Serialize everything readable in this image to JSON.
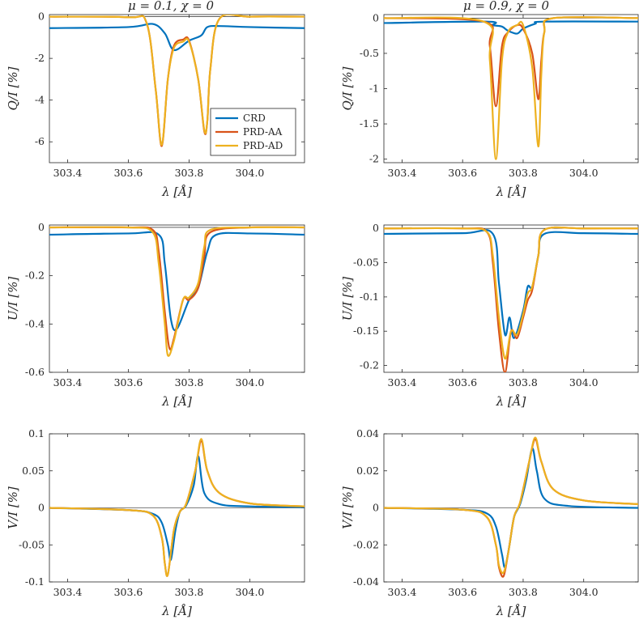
{
  "figure": {
    "colors": {
      "CRD": "#0072BD",
      "PRD-AA": "#D95319",
      "PRD-AD": "#EDB120",
      "observed": "#000000",
      "zero_line": "#000000"
    },
    "titles": [
      "μ = 0.1,  χ = 0",
      "μ = 0.9,  χ = 0"
    ],
    "legend": {
      "panel": 0,
      "location": "lower-right",
      "entries": [
        "CRD",
        "PRD-AA",
        "PRD-AD"
      ]
    }
  },
  "chart_data": [
    {
      "type": "line",
      "panel": "Q-mu0.1",
      "xlabel": "λ [Å]",
      "ylabel": "Q/I [%]",
      "xlim": [
        303.34,
        304.18
      ],
      "ylim": [
        -7.0,
        0.1
      ],
      "xticks": [
        303.4,
        303.6,
        303.8,
        304.0
      ],
      "xticklabels": [
        "303.4",
        "303.6",
        "303.8",
        "304.0"
      ],
      "yticks": [
        0,
        -2,
        -4,
        -6
      ],
      "yticklabels": [
        "0",
        "-2",
        "-4",
        "-6"
      ],
      "series": [
        {
          "name": "CRD",
          "x": [
            303.34,
            303.6,
            303.68,
            303.72,
            303.75,
            303.8,
            303.84,
            303.86,
            303.9,
            304.0,
            304.18
          ],
          "y": [
            -0.55,
            -0.5,
            -0.35,
            -0.8,
            -1.6,
            -1.15,
            -0.9,
            -0.5,
            -0.45,
            -0.5,
            -0.55
          ]
        },
        {
          "name": "PRD-AA",
          "x": [
            303.34,
            303.6,
            303.66,
            303.69,
            303.71,
            303.73,
            303.75,
            303.78,
            303.8,
            303.83,
            303.85,
            303.86,
            303.87,
            303.9,
            304.0,
            304.18
          ],
          "y": [
            0.0,
            -0.03,
            -0.3,
            -3.5,
            -6.2,
            -3.0,
            -1.4,
            -1.1,
            -1.15,
            -3.0,
            -5.5,
            -5.0,
            -2.5,
            -0.1,
            0.0,
            0.0
          ]
        },
        {
          "name": "PRD-AD",
          "x": [
            303.34,
            303.6,
            303.66,
            303.69,
            303.71,
            303.73,
            303.75,
            303.78,
            303.8,
            303.83,
            303.85,
            303.86,
            303.87,
            303.9,
            304.0,
            304.18
          ],
          "y": [
            0.0,
            -0.03,
            -0.3,
            -3.5,
            -6.15,
            -3.0,
            -1.5,
            -1.2,
            -1.2,
            -3.0,
            -5.45,
            -5.0,
            -2.5,
            -0.1,
            0.0,
            0.0
          ]
        }
      ]
    },
    {
      "type": "line",
      "panel": "Q-mu0.9",
      "xlabel": "λ [Å]",
      "ylabel": "Q/I [%]",
      "xlim": [
        303.34,
        304.18
      ],
      "ylim": [
        -2.05,
        0.05
      ],
      "xticks": [
        303.4,
        303.6,
        303.8,
        304.0
      ],
      "xticklabels": [
        "303.4",
        "303.6",
        "303.8",
        "304.0"
      ],
      "yticks": [
        0,
        -0.5,
        -1,
        -1.5,
        -2
      ],
      "yticklabels": [
        "0",
        "-0.5",
        "-1",
        "-1.5",
        "-2"
      ],
      "series": [
        {
          "name": "CRD",
          "x": [
            303.34,
            303.68,
            303.7,
            303.73,
            303.75,
            303.78,
            303.8,
            303.84,
            303.87,
            304.18
          ],
          "y": [
            -0.07,
            -0.05,
            -0.1,
            -0.12,
            -0.18,
            -0.22,
            -0.15,
            -0.08,
            -0.05,
            -0.05
          ]
        },
        {
          "name": "PRD-AA",
          "x": [
            303.34,
            303.67,
            303.69,
            303.71,
            303.73,
            303.75,
            303.78,
            303.8,
            303.83,
            303.85,
            303.86,
            303.87,
            303.9,
            304.18
          ],
          "y": [
            0.0,
            -0.05,
            -0.4,
            -1.25,
            -0.4,
            -0.2,
            -0.1,
            -0.15,
            -0.5,
            -1.15,
            -0.6,
            -0.2,
            0.0,
            0.0
          ]
        },
        {
          "name": "PRD-AD",
          "x": [
            303.34,
            303.67,
            303.69,
            303.71,
            303.73,
            303.75,
            303.78,
            303.8,
            303.83,
            303.85,
            303.86,
            303.87,
            303.9,
            304.18
          ],
          "y": [
            0.0,
            -0.05,
            -0.6,
            -2.0,
            -0.6,
            -0.2,
            -0.1,
            -0.1,
            -0.7,
            -1.82,
            -0.8,
            -0.2,
            0.0,
            0.0
          ]
        }
      ]
    },
    {
      "type": "line",
      "panel": "U-mu0.1",
      "xlabel": "λ [Å]",
      "ylabel": "U/I [%]",
      "xlim": [
        303.34,
        304.18
      ],
      "ylim": [
        -0.6,
        0.01
      ],
      "xticks": [
        303.4,
        303.6,
        303.8,
        304.0
      ],
      "xticklabels": [
        "303.4",
        "303.6",
        "303.8",
        "304.0"
      ],
      "yticks": [
        0,
        -0.2,
        -0.4,
        -0.6
      ],
      "yticklabels": [
        "0",
        "-0.2",
        "-0.4",
        "-0.6"
      ],
      "series": [
        {
          "name": "CRD",
          "x": [
            303.34,
            303.6,
            303.7,
            303.72,
            303.74,
            303.76,
            303.8,
            303.83,
            303.86,
            303.89,
            304.0,
            304.18
          ],
          "y": [
            -0.03,
            -0.025,
            -0.03,
            -0.15,
            -0.38,
            -0.42,
            -0.3,
            -0.25,
            -0.1,
            -0.03,
            -0.025,
            -0.03
          ]
        },
        {
          "name": "PRD-AA",
          "x": [
            303.34,
            303.6,
            303.68,
            303.7,
            303.72,
            303.735,
            303.75,
            303.78,
            303.8,
            303.83,
            303.85,
            303.87,
            304.0,
            304.18
          ],
          "y": [
            0.0,
            0.0,
            -0.01,
            -0.1,
            -0.35,
            -0.5,
            -0.46,
            -0.3,
            -0.3,
            -0.25,
            -0.12,
            -0.02,
            0.0,
            0.0
          ]
        },
        {
          "name": "PRD-AD",
          "x": [
            303.34,
            303.6,
            303.68,
            303.7,
            303.72,
            303.73,
            303.75,
            303.78,
            303.8,
            303.83,
            303.85,
            303.87,
            304.0,
            304.18
          ],
          "y": [
            0.0,
            0.0,
            -0.02,
            -0.15,
            -0.4,
            -0.53,
            -0.47,
            -0.3,
            -0.29,
            -0.23,
            -0.08,
            -0.01,
            0.0,
            0.0
          ]
        }
      ]
    },
    {
      "type": "line",
      "panel": "U-mu0.9",
      "xlabel": "λ [Å]",
      "ylabel": "U/I [%]",
      "xlim": [
        303.34,
        304.18
      ],
      "ylim": [
        -0.21,
        0.005
      ],
      "xticks": [
        303.4,
        303.6,
        303.8,
        304.0
      ],
      "xticklabels": [
        "303.4",
        "303.6",
        "303.8",
        "304.0"
      ],
      "yticks": [
        0,
        -0.05,
        -0.1,
        -0.15,
        -0.2
      ],
      "yticklabels": [
        "0",
        "-0.05",
        "-0.1",
        "-0.15",
        "-0.2"
      ],
      "series": [
        {
          "name": "CRD",
          "x": [
            303.34,
            303.6,
            303.7,
            303.72,
            303.74,
            303.755,
            303.77,
            303.8,
            303.815,
            303.83,
            303.85,
            303.87,
            304.0,
            304.18
          ],
          "y": [
            -0.008,
            -0.007,
            -0.008,
            -0.08,
            -0.155,
            -0.13,
            -0.16,
            -0.12,
            -0.085,
            -0.085,
            -0.04,
            -0.008,
            -0.007,
            -0.008
          ]
        },
        {
          "name": "PRD-AA",
          "x": [
            303.34,
            303.6,
            303.68,
            303.7,
            303.72,
            303.74,
            303.76,
            303.78,
            303.8,
            303.815,
            303.83,
            303.85,
            303.87,
            304.0,
            304.18
          ],
          "y": [
            0.0,
            0.0,
            -0.005,
            -0.05,
            -0.15,
            -0.21,
            -0.15,
            -0.16,
            -0.13,
            -0.105,
            -0.09,
            -0.04,
            -0.002,
            0.0,
            0.0
          ]
        },
        {
          "name": "PRD-AD",
          "x": [
            303.34,
            303.6,
            303.68,
            303.7,
            303.72,
            303.74,
            303.76,
            303.78,
            303.8,
            303.815,
            303.83,
            303.85,
            303.87,
            304.0,
            304.18
          ],
          "y": [
            0.0,
            0.0,
            -0.005,
            -0.04,
            -0.13,
            -0.19,
            -0.15,
            -0.155,
            -0.125,
            -0.095,
            -0.085,
            -0.04,
            -0.002,
            0.0,
            0.0
          ]
        }
      ]
    },
    {
      "type": "line",
      "panel": "V-mu0.1",
      "xlabel": "λ [Å]",
      "ylabel": "V/I [%]",
      "xlim": [
        303.34,
        304.18
      ],
      "ylim": [
        -0.1,
        0.1
      ],
      "xticks": [
        303.4,
        303.6,
        303.8,
        304.0
      ],
      "xticklabels": [
        "303.4",
        "303.6",
        "303.8",
        "304.0"
      ],
      "yticks": [
        0.1,
        0.05,
        0,
        -0.05,
        -0.1
      ],
      "yticklabels": [
        "0.1",
        "0.05",
        "0",
        "-0.05",
        "-0.1"
      ],
      "series": [
        {
          "name": "CRD",
          "x": [
            303.34,
            303.6,
            303.68,
            303.71,
            303.73,
            303.74,
            303.755,
            303.77,
            303.79,
            303.815,
            303.83,
            303.85,
            303.9,
            304.0,
            304.18
          ],
          "y": [
            0.0,
            -0.003,
            -0.008,
            -0.02,
            -0.05,
            -0.07,
            -0.03,
            -0.005,
            0.003,
            0.03,
            0.07,
            0.02,
            0.005,
            0.002,
            0.001
          ]
        },
        {
          "name": "PRD-AA",
          "x": [
            303.34,
            303.6,
            303.68,
            303.71,
            303.72,
            303.73,
            303.75,
            303.77,
            303.79,
            303.82,
            303.84,
            303.86,
            303.9,
            304.0,
            304.18
          ],
          "y": [
            0.0,
            -0.003,
            -0.01,
            -0.04,
            -0.075,
            -0.09,
            -0.03,
            -0.005,
            0.005,
            0.05,
            0.09,
            0.05,
            0.02,
            0.006,
            0.002
          ]
        },
        {
          "name": "PRD-AD",
          "x": [
            303.34,
            303.6,
            303.68,
            303.71,
            303.72,
            303.73,
            303.75,
            303.77,
            303.79,
            303.82,
            303.84,
            303.86,
            303.9,
            304.0,
            304.18
          ],
          "y": [
            0.0,
            -0.003,
            -0.01,
            -0.04,
            -0.075,
            -0.09,
            -0.03,
            -0.005,
            0.005,
            0.05,
            0.093,
            0.05,
            0.02,
            0.006,
            0.002
          ]
        }
      ]
    },
    {
      "type": "line",
      "panel": "V-mu0.9",
      "xlabel": "λ [Å]",
      "ylabel": "V/I [%]",
      "xlim": [
        303.34,
        304.18
      ],
      "ylim": [
        -0.04,
        0.04
      ],
      "xticks": [
        303.4,
        303.6,
        303.8,
        304.0
      ],
      "xticklabels": [
        "303.4",
        "303.6",
        "303.8",
        "304.0"
      ],
      "yticks": [
        0.04,
        0.02,
        0,
        -0.02,
        -0.04
      ],
      "yticklabels": [
        "0.04",
        "0.02",
        "0",
        "-0.02",
        "-0.04"
      ],
      "series": [
        {
          "name": "CRD",
          "x": [
            303.34,
            303.6,
            303.68,
            303.71,
            303.73,
            303.74,
            303.755,
            303.77,
            303.79,
            303.81,
            303.83,
            303.845,
            303.87,
            303.95,
            304.18
          ],
          "y": [
            0.0,
            -0.001,
            -0.003,
            -0.01,
            -0.025,
            -0.032,
            -0.02,
            -0.005,
            0.002,
            0.015,
            0.032,
            0.02,
            0.005,
            0.001,
            0.0
          ]
        },
        {
          "name": "PRD-AA",
          "x": [
            303.34,
            303.6,
            303.68,
            303.71,
            303.72,
            303.735,
            303.75,
            303.77,
            303.79,
            303.82,
            303.84,
            303.86,
            303.9,
            304.0,
            304.18
          ],
          "y": [
            0.0,
            -0.001,
            -0.005,
            -0.02,
            -0.032,
            -0.037,
            -0.025,
            -0.005,
            0.003,
            0.025,
            0.037,
            0.025,
            0.01,
            0.004,
            0.002
          ]
        },
        {
          "name": "PRD-AD",
          "x": [
            303.34,
            303.6,
            303.68,
            303.71,
            303.72,
            303.735,
            303.75,
            303.77,
            303.79,
            303.82,
            303.84,
            303.86,
            303.9,
            304.0,
            304.18
          ],
          "y": [
            0.0,
            -0.001,
            -0.005,
            -0.02,
            -0.031,
            -0.035,
            -0.025,
            -0.005,
            0.003,
            0.025,
            0.038,
            0.025,
            0.01,
            0.004,
            0.002
          ]
        }
      ]
    }
  ]
}
